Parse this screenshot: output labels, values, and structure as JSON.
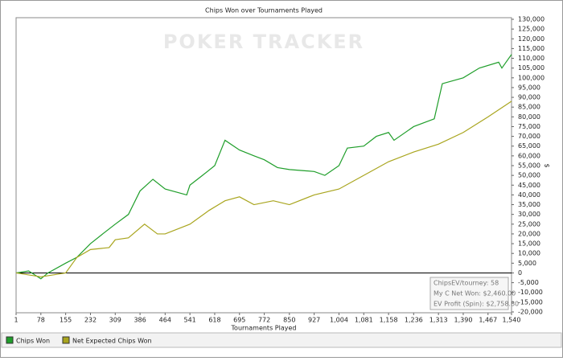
{
  "chart_data": {
    "type": "line",
    "title": "Chips Won over Tournaments Played",
    "watermark": "POKER TRACKER",
    "x_label": "Tournaments Played",
    "y_label": "$",
    "xlim": [
      1,
      1540
    ],
    "xticks": [
      1,
      78,
      155,
      232,
      309,
      386,
      464,
      541,
      618,
      695,
      772,
      850,
      927,
      {
        "value": 1004,
        "label": "1,004"
      },
      {
        "value": 1081,
        "label": "1,081"
      },
      {
        "value": 1158,
        "label": "1,158"
      },
      {
        "value": 1236,
        "label": "1,236"
      },
      {
        "value": 1313,
        "label": "1,313"
      },
      {
        "value": 1390,
        "label": "1,390"
      },
      {
        "value": 1467,
        "label": "1,467"
      },
      {
        "value": 1540,
        "label": "1,540"
      }
    ],
    "ylim": [
      -20000,
      130000
    ],
    "yticks": [
      {
        "value": -20000,
        "label": "-20,000"
      },
      {
        "value": -15000,
        "label": "-15,000"
      },
      {
        "value": -10000,
        "label": "-10,000"
      },
      {
        "value": -5000,
        "label": "-5,000"
      },
      0,
      {
        "value": 5000,
        "label": "5,000"
      },
      {
        "value": 10000,
        "label": "10,000"
      },
      {
        "value": 15000,
        "label": "15,000"
      },
      {
        "value": 20000,
        "label": "20,000"
      },
      {
        "value": 25000,
        "label": "25,000"
      },
      {
        "value": 30000,
        "label": "30,000"
      },
      {
        "value": 35000,
        "label": "35,000"
      },
      {
        "value": 40000,
        "label": "40,000"
      },
      {
        "value": 45000,
        "label": "45,000"
      },
      {
        "value": 50000,
        "label": "50,000"
      },
      {
        "value": 55000,
        "label": "55,000"
      },
      {
        "value": 60000,
        "label": "60,000"
      },
      {
        "value": 65000,
        "label": "65,000"
      },
      {
        "value": 70000,
        "label": "70,000"
      },
      {
        "value": 75000,
        "label": "75,000"
      },
      {
        "value": 80000,
        "label": "80,000"
      },
      {
        "value": 85000,
        "label": "85,000"
      },
      {
        "value": 90000,
        "label": "90,000"
      },
      {
        "value": 95000,
        "label": "95,000"
      },
      {
        "value": 100000,
        "label": "100,000"
      },
      {
        "value": 105000,
        "label": "105,000"
      },
      {
        "value": 110000,
        "label": "110,000"
      },
      {
        "value": 115000,
        "label": "115,000"
      },
      {
        "value": 120000,
        "label": "120,000"
      },
      {
        "value": 125000,
        "label": "125,000"
      },
      {
        "value": 130000,
        "label": "130,000"
      }
    ],
    "series": [
      {
        "name": "Chips Won",
        "color": "#1f9e2a",
        "x": [
          1,
          40,
          78,
          100,
          155,
          190,
          232,
          270,
          309,
          350,
          386,
          426,
          464,
          531,
          541,
          580,
          618,
          650,
          695,
          740,
          772,
          813,
          850,
          927,
          960,
          1004,
          1030,
          1081,
          1120,
          1158,
          1175,
          1236,
          1300,
          1325,
          1390,
          1440,
          1500,
          1510,
          1540
        ],
        "values": [
          0,
          1000,
          -3000,
          0,
          5000,
          8000,
          15000,
          20000,
          25000,
          30000,
          42000,
          48000,
          43000,
          40000,
          45000,
          50000,
          55000,
          68000,
          63000,
          60000,
          58000,
          54000,
          53000,
          52000,
          50000,
          55000,
          64000,
          65000,
          70000,
          72000,
          68000,
          75000,
          79000,
          97000,
          100000,
          105000,
          108000,
          105000,
          112000
        ]
      },
      {
        "name": "Net Expected Chips Won",
        "color": "#a9a51e",
        "x": [
          1,
          78,
          155,
          190,
          232,
          290,
          309,
          350,
          400,
          440,
          464,
          541,
          600,
          650,
          695,
          740,
          800,
          850,
          927,
          1004,
          1081,
          1158,
          1236,
          1313,
          1390,
          1467,
          1540
        ],
        "values": [
          0,
          -2000,
          0,
          8000,
          12000,
          13000,
          17000,
          18000,
          25000,
          20000,
          20000,
          25000,
          32000,
          37000,
          39000,
          35000,
          37000,
          35000,
          40000,
          43000,
          50000,
          57000,
          62000,
          66000,
          72000,
          80000,
          88000
        ]
      }
    ],
    "info_box": [
      "ChipsEV/tourney: 58",
      "My C Net Won: $2,460.00",
      "EV Profit (Spin): $2,758.80"
    ]
  }
}
